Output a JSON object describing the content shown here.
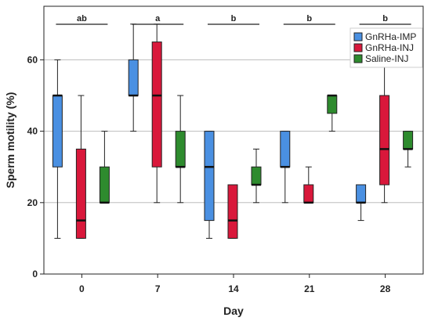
{
  "chart_data": {
    "type": "boxplot",
    "xlabel": "Day",
    "ylabel": "Sperm motility (%)",
    "ylim": [
      0,
      75
    ],
    "yticks": [
      0,
      20,
      40,
      60
    ],
    "grid": true,
    "legend_position": "top-right",
    "categories": [
      "0",
      "7",
      "14",
      "21",
      "28"
    ],
    "significance": [
      "ab",
      "a",
      "b",
      "b",
      "b"
    ],
    "series": [
      {
        "name": "GnRHa-IMP",
        "color": "#4a90e2",
        "boxes": [
          {
            "min": 10,
            "q1": 30,
            "median": 50,
            "q3": 50,
            "max": 60
          },
          {
            "min": 40,
            "q1": 50,
            "median": 50,
            "q3": 60,
            "max": 70
          },
          {
            "min": 10,
            "q1": 15,
            "median": 30,
            "q3": 40,
            "max": 40
          },
          {
            "min": 20,
            "q1": 30,
            "median": 30,
            "q3": 40,
            "max": 40
          },
          {
            "min": 15,
            "q1": 20,
            "median": 20,
            "q3": 25,
            "max": 25
          }
        ]
      },
      {
        "name": "GnRHa-INJ",
        "color": "#d9183b",
        "boxes": [
          {
            "min": 10,
            "q1": 10,
            "median": 15,
            "q3": 35,
            "max": 50
          },
          {
            "min": 20,
            "q1": 30,
            "median": 50,
            "q3": 65,
            "max": 70
          },
          {
            "min": 10,
            "q1": 10,
            "median": 15,
            "q3": 25,
            "max": 25
          },
          {
            "min": 20,
            "q1": 20,
            "median": 20,
            "q3": 25,
            "max": 30
          },
          {
            "min": 20,
            "q1": 25,
            "median": 35,
            "q3": 50,
            "max": 60
          }
        ]
      },
      {
        "name": "Saline-INJ",
        "color": "#2e8b2e",
        "boxes": [
          {
            "min": 20,
            "q1": 20,
            "median": 20,
            "q3": 30,
            "max": 40
          },
          {
            "min": 20,
            "q1": 30,
            "median": 30,
            "q3": 40,
            "max": 50
          },
          {
            "min": 20,
            "q1": 25,
            "median": 25,
            "q3": 30,
            "max": 35
          },
          {
            "min": 40,
            "q1": 45,
            "median": 50,
            "q3": 50,
            "max": 50
          },
          {
            "min": 30,
            "q1": 35,
            "median": 35,
            "q3": 40,
            "max": 40
          }
        ]
      }
    ]
  }
}
